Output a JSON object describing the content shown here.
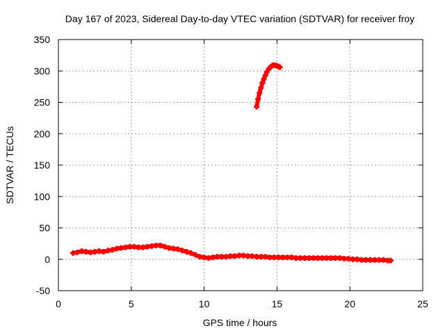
{
  "chart_data": {
    "type": "scatter",
    "title": "Day 167 of 2023, Sidereal Day-to-day VTEC variation (SDTVAR) for receiver froy",
    "xlabel": "GPS time / hours",
    "ylabel": "SDTVAR / TECUs",
    "xlim": [
      0,
      25
    ],
    "ylim": [
      -50,
      350
    ],
    "xticks": [
      "0",
      "5",
      "10",
      "15",
      "20",
      "25"
    ],
    "yticks": [
      "-50",
      "0",
      "50",
      "100",
      "150",
      "200",
      "250",
      "300",
      "350"
    ],
    "grid": true,
    "color": "#ff0000",
    "series": [
      {
        "x": [
          1.0,
          1.3,
          1.6,
          1.9,
          2.2,
          2.5,
          2.8,
          3.1,
          3.4,
          3.7,
          4.0,
          4.3,
          4.6,
          4.9,
          5.2,
          5.5,
          5.8,
          6.1,
          6.4,
          6.7,
          7.0,
          7.3,
          7.6,
          7.9,
          8.2,
          8.5,
          8.8,
          9.1,
          9.4,
          9.7,
          10.0,
          10.3,
          10.6,
          10.9,
          11.2,
          11.5,
          11.8,
          12.1,
          12.4,
          12.7,
          13.0,
          13.3,
          13.6,
          13.9,
          14.2,
          14.5,
          14.8,
          15.1,
          15.4,
          15.7,
          16.0,
          16.3,
          16.6,
          16.9,
          17.2,
          17.5,
          17.8,
          18.1,
          18.4,
          18.7,
          19.0,
          19.3,
          19.6,
          19.9,
          20.2,
          20.5,
          20.8,
          21.1,
          21.4,
          21.7,
          22.0,
          22.3,
          22.6,
          22.8
        ],
        "y": [
          10,
          11,
          13,
          12,
          11,
          12,
          13,
          12,
          14,
          15,
          17,
          18,
          19,
          20,
          20,
          19,
          19,
          20,
          21,
          22,
          22,
          20,
          18,
          17,
          16,
          14,
          12,
          10,
          7,
          4,
          3,
          2,
          3,
          4,
          4,
          4,
          5,
          5,
          6,
          6,
          5,
          5,
          4,
          4,
          4,
          3,
          3,
          3,
          3,
          3,
          3,
          2,
          2,
          2,
          2,
          2,
          2,
          2,
          2,
          2,
          2,
          2,
          1,
          1,
          0,
          0,
          -1,
          -1,
          -1,
          -1,
          -1,
          -1,
          -2,
          -2
        ]
      },
      {
        "x": [
          13.6,
          13.7,
          13.8,
          13.9,
          14.0,
          14.1,
          14.2,
          14.3,
          14.4,
          14.5,
          14.6,
          14.7,
          14.8,
          14.9,
          15.0,
          15.1,
          15.2
        ],
        "y": [
          243,
          255,
          265,
          273,
          281,
          287,
          293,
          298,
          302,
          305,
          307,
          309,
          309,
          309,
          308,
          307,
          306
        ]
      }
    ]
  }
}
